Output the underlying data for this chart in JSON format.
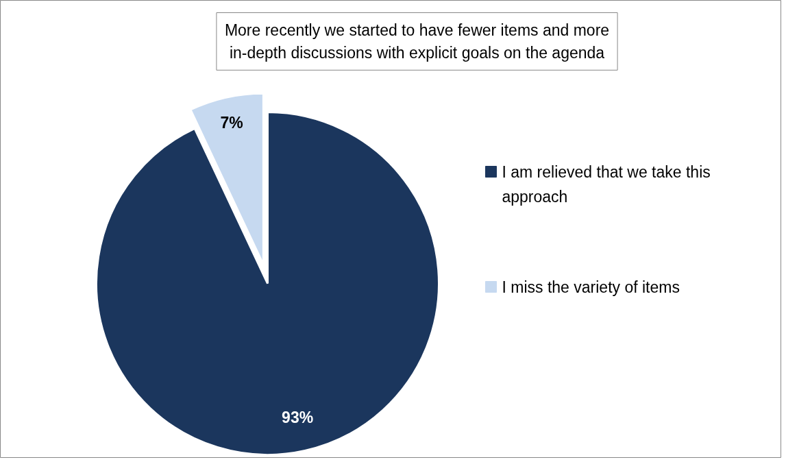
{
  "chart_data": {
    "type": "pie",
    "title": "More recently we started to have fewer items and more in-depth discussions with explicit goals on the agenda",
    "categories": [
      "I am relieved that we take this approach",
      "I miss the variety of items"
    ],
    "values": [
      93,
      7
    ],
    "colors": [
      "#1b365d",
      "#c6d9f0"
    ],
    "value_labels": [
      "93%",
      "7%"
    ],
    "legend": "right"
  }
}
